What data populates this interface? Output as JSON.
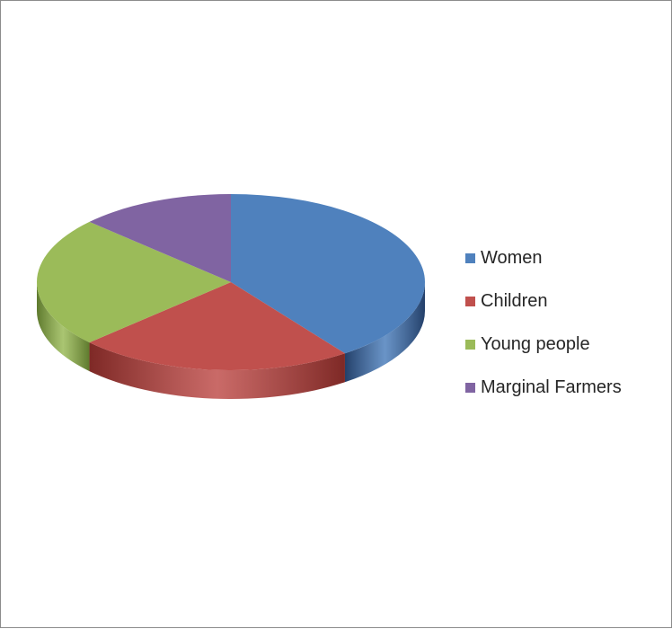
{
  "chart_data": {
    "type": "pie",
    "style": "3d",
    "title": "",
    "legend_position": "right",
    "categories": [
      "Women",
      "Children",
      "Young people",
      "Marginal Farmers"
    ],
    "values": [
      40,
      23,
      24,
      13
    ],
    "colors": [
      "#4F81BD",
      "#C0504D",
      "#9BBB59",
      "#8064A2"
    ],
    "side_colors": [
      "#24406A",
      "#7E2926",
      "#5F7A2E",
      "#4F3A6B"
    ]
  }
}
